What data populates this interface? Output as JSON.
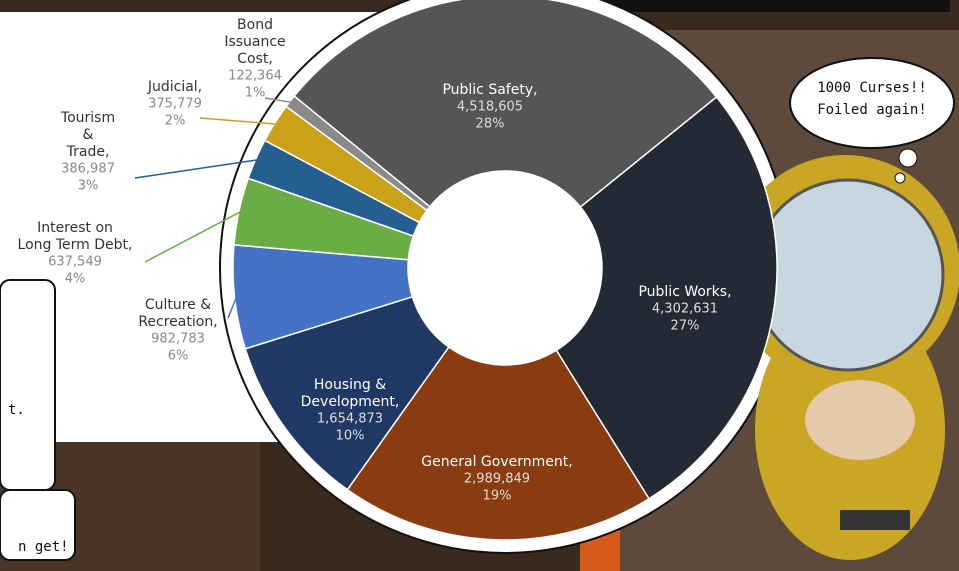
{
  "chart_data": {
    "type": "pie",
    "categories": [
      "Public Safety,",
      "Public Works,",
      "General Government,",
      "Housing &\nDevelopment,",
      "Culture &\nRecreation,",
      "Interest on\nLong Term Debt,",
      "Tourism\n&\nTrade,",
      "Judicial,",
      "Bond\nIssuance\nCost,"
    ],
    "values": [
      4518605,
      4302631,
      2989849,
      1654873,
      982783,
      637549,
      386987,
      375779,
      122364
    ],
    "value_labels": [
      "4,518,605",
      "4,302,631",
      "2,989,849",
      "1,654,873",
      "982,783",
      "637,549",
      "386,987",
      "375,779",
      "122,364"
    ],
    "percent_labels": [
      "28%",
      "27%",
      "19%",
      "10%",
      "6%",
      "4%",
      "3%",
      "2%",
      "1%"
    ],
    "colors": [
      "#555555",
      "#232a35",
      "#8a3b0f",
      "#1f3864",
      "#4472c4",
      "#6aad45",
      "#255e91",
      "#c9a21a",
      "#8a8a8a"
    ],
    "donut": true
  },
  "comic": {
    "bubble": [
      "1000 Curses!!",
      "Foiled again!"
    ],
    "fragments": [
      "t.",
      "n get!"
    ]
  }
}
